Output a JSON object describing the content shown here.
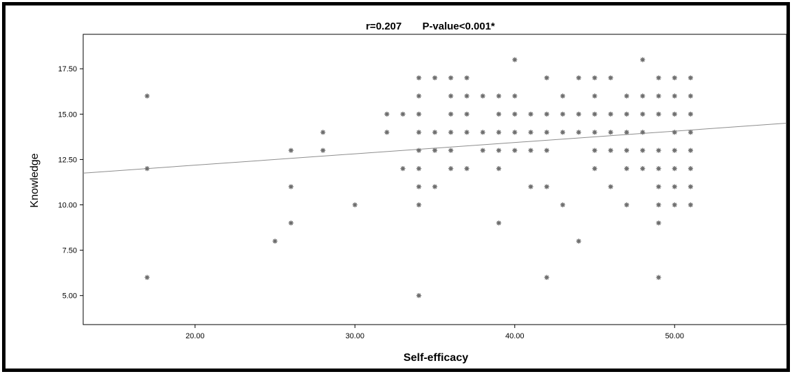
{
  "chart_data": {
    "type": "scatter",
    "title_parts": [
      "r=0.207",
      "P-value<0.001*"
    ],
    "xlabel": "Self-efficacy",
    "ylabel": "Knowledge",
    "xlim": [
      13,
      57
    ],
    "ylim": [
      3.4,
      19.4
    ],
    "x_ticks": [
      {
        "value": 20,
        "label": "20.00"
      },
      {
        "value": 30,
        "label": "30.00"
      },
      {
        "value": 40,
        "label": "40.00"
      },
      {
        "value": 50,
        "label": "50.00"
      }
    ],
    "y_ticks": [
      {
        "value": 5,
        "label": "5.00"
      },
      {
        "value": 7.5,
        "label": "7.50"
      },
      {
        "value": 10,
        "label": "10.00"
      },
      {
        "value": 12.5,
        "label": "12.50"
      },
      {
        "value": 15,
        "label": "15.00"
      },
      {
        "value": 17.5,
        "label": "17.50"
      }
    ],
    "fit_line": {
      "x": [
        13,
        57
      ],
      "y": [
        11.75,
        14.5
      ]
    },
    "marker_color": "#6e6e6e",
    "line_color": "#8c8c8c",
    "grid": false,
    "points": [
      [
        17,
        16
      ],
      [
        17,
        12
      ],
      [
        17,
        6
      ],
      [
        25,
        8
      ],
      [
        26,
        13
      ],
      [
        26,
        11
      ],
      [
        26,
        9
      ],
      [
        28,
        14
      ],
      [
        28,
        13
      ],
      [
        30,
        10
      ],
      [
        32,
        15
      ],
      [
        32,
        14
      ],
      [
        33,
        15
      ],
      [
        33,
        12
      ],
      [
        34,
        17
      ],
      [
        34,
        16
      ],
      [
        34,
        15
      ],
      [
        34,
        14
      ],
      [
        34,
        13
      ],
      [
        34,
        12
      ],
      [
        34,
        11
      ],
      [
        34,
        10
      ],
      [
        34,
        5
      ],
      [
        35,
        17
      ],
      [
        35,
        14
      ],
      [
        35,
        13
      ],
      [
        35,
        11
      ],
      [
        36,
        17
      ],
      [
        36,
        16
      ],
      [
        36,
        15
      ],
      [
        36,
        14
      ],
      [
        36,
        13
      ],
      [
        36,
        12
      ],
      [
        37,
        17
      ],
      [
        37,
        16
      ],
      [
        37,
        15
      ],
      [
        37,
        14
      ],
      [
        37,
        12
      ],
      [
        38,
        16
      ],
      [
        38,
        14
      ],
      [
        38,
        13
      ],
      [
        39,
        16
      ],
      [
        39,
        15
      ],
      [
        39,
        14
      ],
      [
        39,
        13
      ],
      [
        39,
        12
      ],
      [
        39,
        9
      ],
      [
        40,
        18
      ],
      [
        40,
        16
      ],
      [
        40,
        15
      ],
      [
        40,
        14
      ],
      [
        40,
        13
      ],
      [
        41,
        15
      ],
      [
        41,
        14
      ],
      [
        41,
        13
      ],
      [
        41,
        11
      ],
      [
        42,
        17
      ],
      [
        42,
        15
      ],
      [
        42,
        14
      ],
      [
        42,
        13
      ],
      [
        42,
        11
      ],
      [
        42,
        6
      ],
      [
        43,
        16
      ],
      [
        43,
        15
      ],
      [
        43,
        14
      ],
      [
        43,
        10
      ],
      [
        44,
        17
      ],
      [
        44,
        15
      ],
      [
        44,
        14
      ],
      [
        44,
        8
      ],
      [
        45,
        17
      ],
      [
        45,
        16
      ],
      [
        45,
        15
      ],
      [
        45,
        14
      ],
      [
        45,
        13
      ],
      [
        45,
        12
      ],
      [
        46,
        17
      ],
      [
        46,
        15
      ],
      [
        46,
        14
      ],
      [
        46,
        13
      ],
      [
        46,
        11
      ],
      [
        47,
        16
      ],
      [
        47,
        15
      ],
      [
        47,
        14
      ],
      [
        47,
        13
      ],
      [
        47,
        12
      ],
      [
        47,
        10
      ],
      [
        48,
        18
      ],
      [
        48,
        16
      ],
      [
        48,
        15
      ],
      [
        48,
        14
      ],
      [
        48,
        13
      ],
      [
        48,
        12
      ],
      [
        49,
        17
      ],
      [
        49,
        16
      ],
      [
        49,
        15
      ],
      [
        49,
        13
      ],
      [
        49,
        12
      ],
      [
        49,
        11
      ],
      [
        49,
        10
      ],
      [
        49,
        9
      ],
      [
        49,
        6
      ],
      [
        50,
        17
      ],
      [
        50,
        16
      ],
      [
        50,
        15
      ],
      [
        50,
        14
      ],
      [
        50,
        13
      ],
      [
        50,
        12
      ],
      [
        50,
        11
      ],
      [
        50,
        10
      ],
      [
        51,
        17
      ],
      [
        51,
        16
      ],
      [
        51,
        15
      ],
      [
        51,
        14
      ],
      [
        51,
        13
      ],
      [
        51,
        12
      ],
      [
        51,
        11
      ],
      [
        51,
        10
      ]
    ]
  }
}
